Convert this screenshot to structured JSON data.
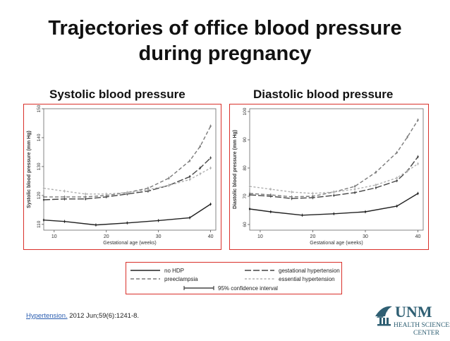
{
  "slide": {
    "title_line1": "Trajectories of office blood pressure",
    "title_line2": "during pregnancy",
    "left_heading": "Systolic blood pressure",
    "right_heading": "Diastolic blood pressure"
  },
  "legend": {
    "items": [
      {
        "label": "no HDP",
        "color": "#222222",
        "dash": "solid"
      },
      {
        "label": "gestational hypertension",
        "color": "#444444",
        "dash": "long-dash"
      },
      {
        "label": "preeclampsia",
        "color": "#7a7a7a",
        "dash": "dash"
      },
      {
        "label": "essential hypertension",
        "color": "#b0b0b0",
        "dash": "short-dash"
      },
      {
        "label": "95% confidence interval",
        "color": "#222222",
        "dash": "ci-bar"
      }
    ]
  },
  "citation": {
    "link_text": "Hypertension.",
    "rest": " 2012 Jun;59(6):1241-8."
  },
  "logo": {
    "name": "UNM",
    "line2": "HEALTH SCIENCES",
    "line3": "CENTER",
    "color": "#2f5f73"
  },
  "chart_data": [
    {
      "type": "line",
      "ylabel": "Systolic blood pressure (mm Hg)",
      "xlabel": "Gestational age (weeks)",
      "xlim": [
        8,
        41
      ],
      "ylim": [
        108,
        150
      ],
      "xticks": [
        10,
        20,
        30,
        40
      ],
      "yticks": [
        110,
        120,
        130,
        140,
        150
      ],
      "grid": false,
      "series": [
        {
          "name": "no HDP",
          "x": [
            8,
            12,
            18,
            24,
            30,
            36,
            40
          ],
          "y": [
            111.5,
            111,
            109.8,
            110.5,
            111.3,
            112.3,
            117
          ]
        },
        {
          "name": "gestational hypertension",
          "x": [
            8,
            12,
            16,
            20,
            24,
            28,
            32,
            36,
            38,
            40
          ],
          "y": [
            118.5,
            118.8,
            118.8,
            119.5,
            120.5,
            121.5,
            123.5,
            126.5,
            129.5,
            133
          ]
        },
        {
          "name": "preeclampsia",
          "x": [
            8,
            12,
            16,
            20,
            24,
            28,
            32,
            36,
            38,
            40
          ],
          "y": [
            119.5,
            119.5,
            119.5,
            120,
            121,
            122.5,
            126,
            132,
            137,
            144
          ]
        },
        {
          "name": "essential hypertension",
          "x": [
            8,
            12,
            16,
            20,
            24,
            28,
            32,
            36,
            38,
            40
          ],
          "y": [
            122.5,
            121.5,
            120.5,
            120.5,
            121,
            122,
            123.5,
            125.5,
            127.5,
            129.5
          ]
        }
      ]
    },
    {
      "type": "line",
      "ylabel": "Diastolic blood pressure (mm Hg)",
      "xlabel": "Gestational age (weeks)",
      "xlim": [
        8,
        41
      ],
      "ylim": [
        58,
        101
      ],
      "xticks": [
        10,
        20,
        30,
        40
      ],
      "yticks": [
        60,
        70,
        80,
        90,
        100
      ],
      "grid": false,
      "series": [
        {
          "name": "no HDP",
          "x": [
            8,
            12,
            18,
            24,
            30,
            36,
            40
          ],
          "y": [
            65.5,
            64.5,
            63.3,
            63.8,
            64.5,
            66.5,
            71
          ]
        },
        {
          "name": "gestational hypertension",
          "x": [
            8,
            12,
            16,
            20,
            24,
            28,
            32,
            36,
            38,
            40
          ],
          "y": [
            70.5,
            70,
            69.2,
            69.5,
            70.3,
            71.3,
            73,
            75.5,
            79,
            84
          ]
        },
        {
          "name": "preeclampsia",
          "x": [
            8,
            12,
            16,
            20,
            24,
            28,
            32,
            36,
            38,
            40
          ],
          "y": [
            71,
            70.5,
            69.8,
            70,
            71.5,
            73.5,
            78.5,
            85.5,
            91,
            97
          ]
        },
        {
          "name": "essential hypertension",
          "x": [
            8,
            12,
            16,
            20,
            24,
            28,
            32,
            36,
            38,
            40
          ],
          "y": [
            73.5,
            72.5,
            71.5,
            71,
            71.5,
            72.5,
            74,
            76.5,
            79,
            81.5
          ]
        }
      ]
    }
  ]
}
